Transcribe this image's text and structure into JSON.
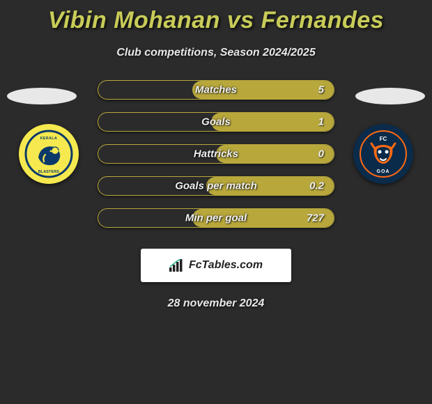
{
  "title": "Vibin Mohanan vs Fernandes",
  "subtitle": "Club competitions, Season 2024/2025",
  "date": "28 november 2024",
  "brand": "FcTables.com",
  "colors": {
    "background": "#2b2b2b",
    "accent": "#c8cc58",
    "bar_fill": "#b8a83c",
    "white": "#ffffff",
    "ellipse": "#e8e8e8"
  },
  "stats": [
    {
      "label": "Matches",
      "value": "5",
      "fill_pct": 60
    },
    {
      "label": "Goals",
      "value": "1",
      "fill_pct": 52
    },
    {
      "label": "Hattricks",
      "value": "0",
      "fill_pct": 50
    },
    {
      "label": "Goals per match",
      "value": "0.2",
      "fill_pct": 54
    },
    {
      "label": "Min per goal",
      "value": "727",
      "fill_pct": 60
    }
  ],
  "clubs": {
    "left": {
      "name": "Kerala Blasters",
      "bg": "#f5e94f",
      "fg": "#0b3a6a"
    },
    "right": {
      "name": "FC Goa",
      "bg": "#0b2b4a",
      "fg": "#ff6a13"
    }
  }
}
